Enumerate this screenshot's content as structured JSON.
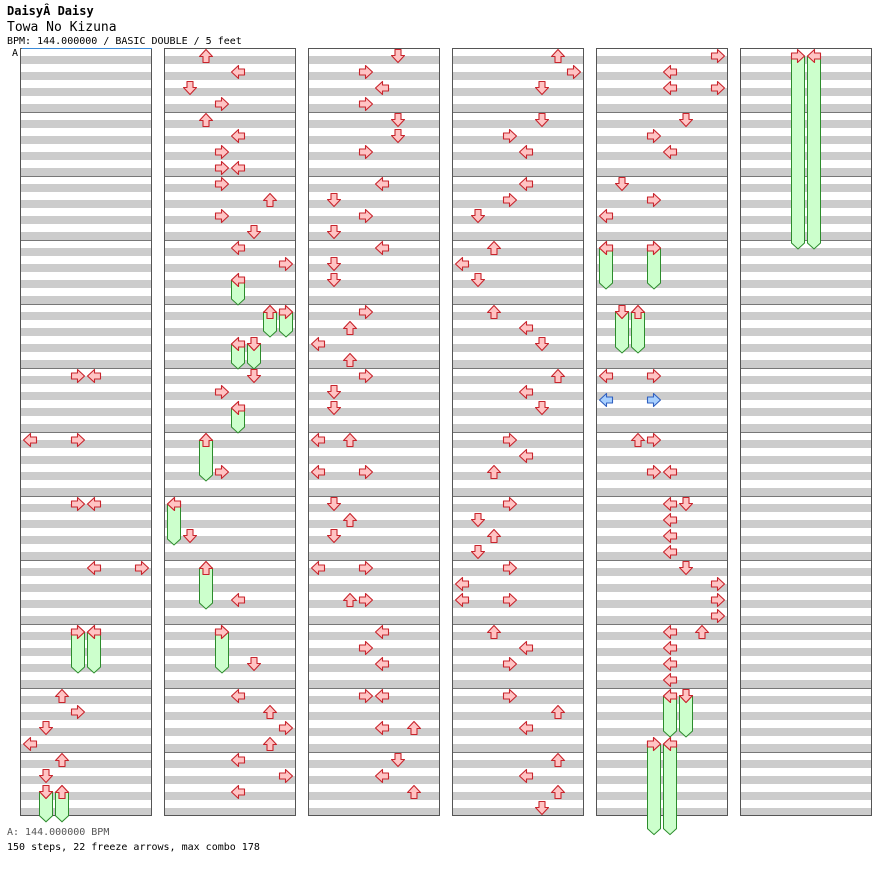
{
  "header": {
    "artist": "DaisyÂ Daisy",
    "title": "Towa No Kizuna",
    "info": "BPM: 144.000000 / BASIC DOUBLE / 5 feet",
    "bpm_marker": "A"
  },
  "footer": {
    "bpm_legend": "A: 144.000000 BPM",
    "stats": "150 steps, 22 freeze arrows, max combo 178"
  },
  "colors": {
    "band_gray": "#cccccc",
    "arrow_fill": "#ffc4c4",
    "arrow_stroke": "#c8242c",
    "freeze_fill": "#ccffcc",
    "freeze_stroke": "#2c8c2c",
    "mine_fill": "#a8d0ff",
    "mine_stroke": "#3060c0",
    "border": "#555555"
  },
  "chart_data": {
    "type": "table",
    "description": "Step chart, 6 page columns x 12 measures of 4 beats; lanes 0-7 (0=P1 left,1=P1 down,2=P1 up,3=P1 right,4=P2 left,5=P2 down,6=P2 up,7=P2 right); beat = offset in beats within the column.",
    "columns": 6,
    "measures_per_column": 12,
    "beats_per_measure": 4,
    "arrows": [
      {
        "col": 0,
        "beat": 20,
        "lane": 3
      },
      {
        "col": 0,
        "beat": 20,
        "lane": 4
      },
      {
        "col": 0,
        "beat": 24,
        "lane": 0
      },
      {
        "col": 0,
        "beat": 24,
        "lane": 3
      },
      {
        "col": 0,
        "beat": 28,
        "lane": 3
      },
      {
        "col": 0,
        "beat": 28,
        "lane": 4
      },
      {
        "col": 0,
        "beat": 32,
        "lane": 4
      },
      {
        "col": 0,
        "beat": 32,
        "lane": 7
      },
      {
        "col": 0,
        "beat": 36,
        "lane": 3
      },
      {
        "col": 0,
        "beat": 36,
        "lane": 4
      },
      {
        "col": 0,
        "beat": 40,
        "lane": 2
      },
      {
        "col": 0,
        "beat": 41,
        "lane": 3
      },
      {
        "col": 0,
        "beat": 42,
        "lane": 1
      },
      {
        "col": 0,
        "beat": 43,
        "lane": 0
      },
      {
        "col": 0,
        "beat": 44,
        "lane": 2
      },
      {
        "col": 0,
        "beat": 45,
        "lane": 1
      },
      {
        "col": 0,
        "beat": 46,
        "lane": 1
      },
      {
        "col": 0,
        "beat": 46,
        "lane": 2
      },
      {
        "col": 1,
        "beat": 0,
        "lane": 2
      },
      {
        "col": 1,
        "beat": 1,
        "lane": 4
      },
      {
        "col": 1,
        "beat": 2,
        "lane": 1
      },
      {
        "col": 1,
        "beat": 3,
        "lane": 3
      },
      {
        "col": 1,
        "beat": 4,
        "lane": 2
      },
      {
        "col": 1,
        "beat": 5,
        "lane": 4
      },
      {
        "col": 1,
        "beat": 6,
        "lane": 3
      },
      {
        "col": 1,
        "beat": 7,
        "lane": 3
      },
      {
        "col": 1,
        "beat": 7,
        "lane": 4
      },
      {
        "col": 1,
        "beat": 8,
        "lane": 3
      },
      {
        "col": 1,
        "beat": 9,
        "lane": 6
      },
      {
        "col": 1,
        "beat": 10,
        "lane": 3
      },
      {
        "col": 1,
        "beat": 11,
        "lane": 5
      },
      {
        "col": 1,
        "beat": 12,
        "lane": 4
      },
      {
        "col": 1,
        "beat": 13,
        "lane": 7
      },
      {
        "col": 1,
        "beat": 14,
        "lane": 4
      },
      {
        "col": 1,
        "beat": 16,
        "lane": 6
      },
      {
        "col": 1,
        "beat": 16,
        "lane": 7
      },
      {
        "col": 1,
        "beat": 18,
        "lane": 4
      },
      {
        "col": 1,
        "beat": 18,
        "lane": 5
      },
      {
        "col": 1,
        "beat": 20,
        "lane": 5
      },
      {
        "col": 1,
        "beat": 21,
        "lane": 3
      },
      {
        "col": 1,
        "beat": 22,
        "lane": 4
      },
      {
        "col": 1,
        "beat": 24,
        "lane": 2
      },
      {
        "col": 1,
        "beat": 26,
        "lane": 3
      },
      {
        "col": 1,
        "beat": 28,
        "lane": 0
      },
      {
        "col": 1,
        "beat": 30,
        "lane": 1
      },
      {
        "col": 1,
        "beat": 32,
        "lane": 2
      },
      {
        "col": 1,
        "beat": 34,
        "lane": 4
      },
      {
        "col": 1,
        "beat": 36,
        "lane": 3
      },
      {
        "col": 1,
        "beat": 38,
        "lane": 5
      },
      {
        "col": 1,
        "beat": 40,
        "lane": 4
      },
      {
        "col": 1,
        "beat": 41,
        "lane": 6
      },
      {
        "col": 1,
        "beat": 42,
        "lane": 7
      },
      {
        "col": 1,
        "beat": 43,
        "lane": 6
      },
      {
        "col": 1,
        "beat": 44,
        "lane": 4
      },
      {
        "col": 1,
        "beat": 45,
        "lane": 7
      },
      {
        "col": 1,
        "beat": 46,
        "lane": 4
      },
      {
        "col": 2,
        "beat": 0,
        "lane": 5
      },
      {
        "col": 2,
        "beat": 1,
        "lane": 3
      },
      {
        "col": 2,
        "beat": 2,
        "lane": 4
      },
      {
        "col": 2,
        "beat": 3,
        "lane": 3
      },
      {
        "col": 2,
        "beat": 4,
        "lane": 5
      },
      {
        "col": 2,
        "beat": 5,
        "lane": 5
      },
      {
        "col": 2,
        "beat": 6,
        "lane": 3
      },
      {
        "col": 2,
        "beat": 8,
        "lane": 4
      },
      {
        "col": 2,
        "beat": 9,
        "lane": 1
      },
      {
        "col": 2,
        "beat": 10,
        "lane": 3
      },
      {
        "col": 2,
        "beat": 11,
        "lane": 1
      },
      {
        "col": 2,
        "beat": 12,
        "lane": 4
      },
      {
        "col": 2,
        "beat": 13,
        "lane": 1
      },
      {
        "col": 2,
        "beat": 14,
        "lane": 1
      },
      {
        "col": 2,
        "beat": 16,
        "lane": 3
      },
      {
        "col": 2,
        "beat": 17,
        "lane": 2
      },
      {
        "col": 2,
        "beat": 18,
        "lane": 0
      },
      {
        "col": 2,
        "beat": 19,
        "lane": 2
      },
      {
        "col": 2,
        "beat": 20,
        "lane": 3
      },
      {
        "col": 2,
        "beat": 21,
        "lane": 1
      },
      {
        "col": 2,
        "beat": 22,
        "lane": 1
      },
      {
        "col": 2,
        "beat": 24,
        "lane": 0
      },
      {
        "col": 2,
        "beat": 24,
        "lane": 2
      },
      {
        "col": 2,
        "beat": 26,
        "lane": 0
      },
      {
        "col": 2,
        "beat": 26,
        "lane": 3
      },
      {
        "col": 2,
        "beat": 28,
        "lane": 1
      },
      {
        "col": 2,
        "beat": 29,
        "lane": 2
      },
      {
        "col": 2,
        "beat": 30,
        "lane": 1
      },
      {
        "col": 2,
        "beat": 32,
        "lane": 0
      },
      {
        "col": 2,
        "beat": 32,
        "lane": 3
      },
      {
        "col": 2,
        "beat": 34,
        "lane": 2
      },
      {
        "col": 2,
        "beat": 34,
        "lane": 3
      },
      {
        "col": 2,
        "beat": 36,
        "lane": 4
      },
      {
        "col": 2,
        "beat": 37,
        "lane": 3
      },
      {
        "col": 2,
        "beat": 38,
        "lane": 4
      },
      {
        "col": 2,
        "beat": 40,
        "lane": 3
      },
      {
        "col": 2,
        "beat": 40,
        "lane": 4
      },
      {
        "col": 2,
        "beat": 42,
        "lane": 4
      },
      {
        "col": 2,
        "beat": 42,
        "lane": 6
      },
      {
        "col": 2,
        "beat": 44,
        "lane": 5
      },
      {
        "col": 2,
        "beat": 45,
        "lane": 4
      },
      {
        "col": 2,
        "beat": 46,
        "lane": 6
      },
      {
        "col": 3,
        "beat": 0,
        "lane": 6
      },
      {
        "col": 3,
        "beat": 1,
        "lane": 7
      },
      {
        "col": 3,
        "beat": 2,
        "lane": 5
      },
      {
        "col": 3,
        "beat": 4,
        "lane": 5
      },
      {
        "col": 3,
        "beat": 5,
        "lane": 3
      },
      {
        "col": 3,
        "beat": 6,
        "lane": 4
      },
      {
        "col": 3,
        "beat": 8,
        "lane": 4
      },
      {
        "col": 3,
        "beat": 9,
        "lane": 3
      },
      {
        "col": 3,
        "beat": 10,
        "lane": 1
      },
      {
        "col": 3,
        "beat": 12,
        "lane": 2
      },
      {
        "col": 3,
        "beat": 13,
        "lane": 0
      },
      {
        "col": 3,
        "beat": 14,
        "lane": 1
      },
      {
        "col": 3,
        "beat": 16,
        "lane": 2
      },
      {
        "col": 3,
        "beat": 17,
        "lane": 4
      },
      {
        "col": 3,
        "beat": 18,
        "lane": 5
      },
      {
        "col": 3,
        "beat": 20,
        "lane": 6
      },
      {
        "col": 3,
        "beat": 21,
        "lane": 4
      },
      {
        "col": 3,
        "beat": 22,
        "lane": 5
      },
      {
        "col": 3,
        "beat": 24,
        "lane": 3
      },
      {
        "col": 3,
        "beat": 25,
        "lane": 4
      },
      {
        "col": 3,
        "beat": 26,
        "lane": 2
      },
      {
        "col": 3,
        "beat": 28,
        "lane": 3
      },
      {
        "col": 3,
        "beat": 29,
        "lane": 1
      },
      {
        "col": 3,
        "beat": 30,
        "lane": 2
      },
      {
        "col": 3,
        "beat": 31,
        "lane": 1
      },
      {
        "col": 3,
        "beat": 32,
        "lane": 3
      },
      {
        "col": 3,
        "beat": 33,
        "lane": 0
      },
      {
        "col": 3,
        "beat": 34,
        "lane": 0
      },
      {
        "col": 3,
        "beat": 34,
        "lane": 3
      },
      {
        "col": 3,
        "beat": 36,
        "lane": 2
      },
      {
        "col": 3,
        "beat": 37,
        "lane": 4
      },
      {
        "col": 3,
        "beat": 38,
        "lane": 3
      },
      {
        "col": 3,
        "beat": 40,
        "lane": 3
      },
      {
        "col": 3,
        "beat": 41,
        "lane": 6
      },
      {
        "col": 3,
        "beat": 42,
        "lane": 4
      },
      {
        "col": 3,
        "beat": 44,
        "lane": 6
      },
      {
        "col": 3,
        "beat": 45,
        "lane": 4
      },
      {
        "col": 3,
        "beat": 46,
        "lane": 6
      },
      {
        "col": 3,
        "beat": 47,
        "lane": 5
      },
      {
        "col": 4,
        "beat": 0,
        "lane": 7
      },
      {
        "col": 4,
        "beat": 1,
        "lane": 4
      },
      {
        "col": 4,
        "beat": 2,
        "lane": 4
      },
      {
        "col": 4,
        "beat": 2,
        "lane": 7
      },
      {
        "col": 4,
        "beat": 4,
        "lane": 5
      },
      {
        "col": 4,
        "beat": 5,
        "lane": 3
      },
      {
        "col": 4,
        "beat": 6,
        "lane": 4
      },
      {
        "col": 4,
        "beat": 8,
        "lane": 1
      },
      {
        "col": 4,
        "beat": 9,
        "lane": 3
      },
      {
        "col": 4,
        "beat": 10,
        "lane": 0
      },
      {
        "col": 4,
        "beat": 12,
        "lane": 0
      },
      {
        "col": 4,
        "beat": 12,
        "lane": 3
      },
      {
        "col": 4,
        "beat": 16,
        "lane": 1
      },
      {
        "col": 4,
        "beat": 16,
        "lane": 2
      },
      {
        "col": 4,
        "beat": 20,
        "lane": 0
      },
      {
        "col": 4,
        "beat": 20,
        "lane": 3
      },
      {
        "col": 4,
        "beat": 24,
        "lane": 2
      },
      {
        "col": 4,
        "beat": 24,
        "lane": 3
      },
      {
        "col": 4,
        "beat": 26,
        "lane": 3
      },
      {
        "col": 4,
        "beat": 26,
        "lane": 4
      },
      {
        "col": 4,
        "beat": 28,
        "lane": 4
      },
      {
        "col": 4,
        "beat": 28,
        "lane": 5
      },
      {
        "col": 4,
        "beat": 29,
        "lane": 4
      },
      {
        "col": 4,
        "beat": 30,
        "lane": 4
      },
      {
        "col": 4,
        "beat": 31,
        "lane": 4
      },
      {
        "col": 4,
        "beat": 32,
        "lane": 5
      },
      {
        "col": 4,
        "beat": 33,
        "lane": 7
      },
      {
        "col": 4,
        "beat": 34,
        "lane": 7
      },
      {
        "col": 4,
        "beat": 35,
        "lane": 7
      },
      {
        "col": 4,
        "beat": 36,
        "lane": 4
      },
      {
        "col": 4,
        "beat": 36,
        "lane": 6
      },
      {
        "col": 4,
        "beat": 37,
        "lane": 4
      },
      {
        "col": 4,
        "beat": 38,
        "lane": 4
      },
      {
        "col": 4,
        "beat": 39,
        "lane": 4
      },
      {
        "col": 4,
        "beat": 40,
        "lane": 4
      },
      {
        "col": 4,
        "beat": 40,
        "lane": 5
      },
      {
        "col": 4,
        "beat": 43,
        "lane": 3
      },
      {
        "col": 4,
        "beat": 43,
        "lane": 4
      }
    ],
    "mines": [
      {
        "col": 4,
        "beat": 21.5,
        "lane": 0
      },
      {
        "col": 4,
        "beat": 21.5,
        "lane": 3
      }
    ],
    "freezes": [
      {
        "col": 0,
        "beat": 36,
        "end": 38.5,
        "lane": 3
      },
      {
        "col": 0,
        "beat": 36,
        "end": 38.5,
        "lane": 4
      },
      {
        "col": 0,
        "beat": 46,
        "end": 47.8,
        "lane": 1
      },
      {
        "col": 0,
        "beat": 46,
        "end": 47.8,
        "lane": 2
      },
      {
        "col": 1,
        "beat": 14,
        "end": 15.5,
        "lane": 4
      },
      {
        "col": 1,
        "beat": 16,
        "end": 17.5,
        "lane": 6
      },
      {
        "col": 1,
        "beat": 16,
        "end": 17.5,
        "lane": 7
      },
      {
        "col": 1,
        "beat": 18,
        "end": 19.5,
        "lane": 4
      },
      {
        "col": 1,
        "beat": 18,
        "end": 19.5,
        "lane": 5
      },
      {
        "col": 1,
        "beat": 22,
        "end": 23.5,
        "lane": 4
      },
      {
        "col": 1,
        "beat": 24,
        "end": 26.5,
        "lane": 2
      },
      {
        "col": 1,
        "beat": 28,
        "end": 30.5,
        "lane": 0
      },
      {
        "col": 1,
        "beat": 32,
        "end": 34.5,
        "lane": 2
      },
      {
        "col": 1,
        "beat": 36,
        "end": 38.5,
        "lane": 3
      },
      {
        "col": 4,
        "beat": 12,
        "end": 14.5,
        "lane": 0
      },
      {
        "col": 4,
        "beat": 12,
        "end": 14.5,
        "lane": 3
      },
      {
        "col": 4,
        "beat": 16,
        "end": 18.5,
        "lane": 1
      },
      {
        "col": 4,
        "beat": 16,
        "end": 18.5,
        "lane": 2
      },
      {
        "col": 4,
        "beat": 40,
        "end": 42.5,
        "lane": 4
      },
      {
        "col": 4,
        "beat": 40,
        "end": 42.5,
        "lane": 5
      },
      {
        "col": 4,
        "beat": 43,
        "end": 48.6,
        "lane": 3
      },
      {
        "col": 4,
        "beat": 43,
        "end": 48.6,
        "lane": 4
      },
      {
        "col": 5,
        "beat": 0,
        "end": 12,
        "lane": 3
      },
      {
        "col": 5,
        "beat": 0,
        "end": 12,
        "lane": 4
      }
    ]
  }
}
